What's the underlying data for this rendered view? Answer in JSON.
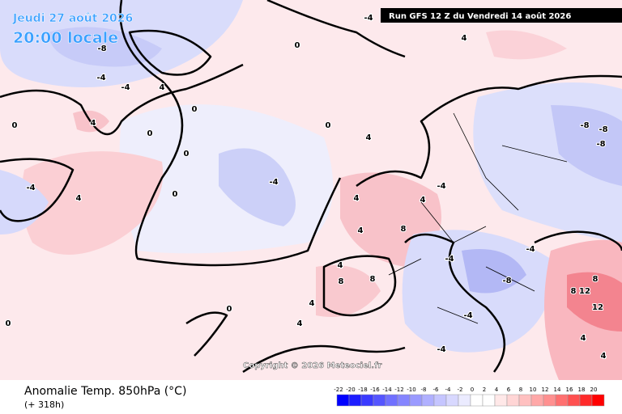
{
  "header": {
    "date": "Jeudi 27 août 2026",
    "time": "20:00 locale",
    "run": "Run GFS 12 Z du Vendredi 14 août 2026"
  },
  "map": {
    "copyright": "Copyright © 2026 Meteociel.fr",
    "contour_labels": [
      -8,
      -4,
      -4,
      4,
      0,
      0,
      4,
      0,
      -4,
      4,
      0,
      0,
      -4,
      4,
      0,
      4,
      -4,
      0,
      4,
      8,
      4,
      8,
      4,
      4,
      8,
      4,
      -4,
      -8,
      -8,
      -8,
      -4,
      -4,
      -8,
      -4,
      -4,
      8,
      12,
      12,
      8,
      4,
      4,
      0,
      4,
      0
    ]
  },
  "footer": {
    "title": "Anomalie Temp. 850hPa (°C)",
    "lead": "(+ 318h)"
  },
  "legend": {
    "ticks": [
      -22,
      -20,
      -18,
      -16,
      -14,
      -12,
      -10,
      -8,
      -6,
      -4,
      -2,
      0,
      2,
      4,
      6,
      8,
      10,
      12,
      14,
      16,
      18,
      20
    ],
    "colors": [
      "#0000ff",
      "#1c1cff",
      "#3a3aff",
      "#5555ff",
      "#7070ff",
      "#8585ff",
      "#9a9aff",
      "#b0b0ff",
      "#c5c5ff",
      "#d8d8ff",
      "#ebebff",
      "#ffffff",
      "#ffffff",
      "#ffe8e8",
      "#ffd5d5",
      "#ffc0c0",
      "#ffa8a8",
      "#ff9090",
      "#ff7070",
      "#ff5050",
      "#ff2a2a",
      "#ff0000"
    ]
  }
}
